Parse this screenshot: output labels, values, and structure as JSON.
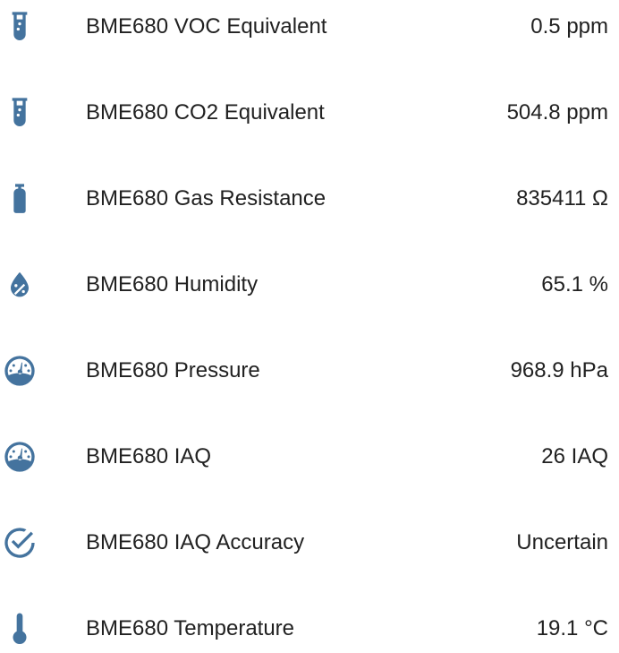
{
  "icon_color": "#44739e",
  "entities": [
    {
      "icon": "test-tube-icon",
      "name": "BME680 VOC Equivalent",
      "state": "0.5 ppm"
    },
    {
      "icon": "test-tube-icon",
      "name": "BME680 CO2 Equivalent",
      "state": "504.8 ppm"
    },
    {
      "icon": "gas-cylinder-icon",
      "name": "BME680 Gas Resistance",
      "state": "835411 Ω"
    },
    {
      "icon": "water-percent-icon",
      "name": "BME680 Humidity",
      "state": "65.1 %"
    },
    {
      "icon": "gauge-icon",
      "name": "BME680 Pressure",
      "state": "968.9 hPa"
    },
    {
      "icon": "gauge-icon",
      "name": "BME680 IAQ",
      "state": "26 IAQ"
    },
    {
      "icon": "check-circle-outline-icon",
      "name": "BME680 IAQ Accuracy",
      "state": "Uncertain"
    },
    {
      "icon": "thermometer-icon",
      "name": "BME680 Temperature",
      "state": "19.1 °C"
    }
  ]
}
